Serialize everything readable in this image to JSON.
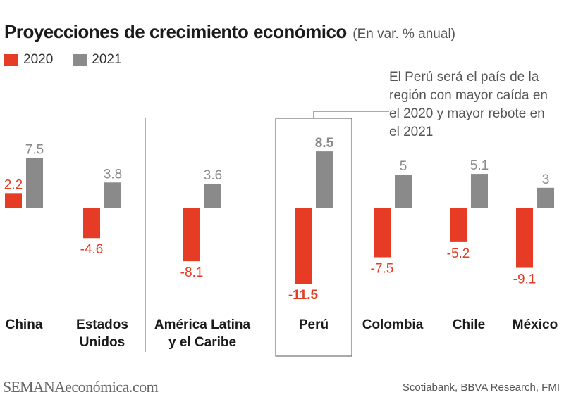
{
  "title": "Proyecciones de crecimiento económico",
  "subtitle": "(En var. % anual)",
  "legend": {
    "a": {
      "label": "2020",
      "color": "#e63b24"
    },
    "b": {
      "label": "2021",
      "color": "#8a8a8a"
    }
  },
  "annotation": "El Perú será el país de la región con mayor caída en el 2020 y mayor rebote en el 2021",
  "footer": {
    "brand_part1": "SEMANA",
    "brand_part2": "económica.com",
    "source": "Scotiabank, BBVA Research, FMI"
  },
  "chart_data": {
    "type": "bar",
    "categories": [
      [
        "China"
      ],
      [
        "Estados",
        "Unidos"
      ],
      [
        "América Latina",
        "y el Caribe"
      ],
      [
        "Perú"
      ],
      [
        "Colombia"
      ],
      [
        "Chile"
      ],
      [
        "México"
      ]
    ],
    "series": [
      {
        "name": "2020",
        "color": "#e63b24",
        "values": [
          2.2,
          -4.6,
          -8.1,
          -11.5,
          -7.5,
          -5.2,
          -9.1
        ],
        "labels": [
          "2.2",
          "-4.6",
          "-8.1",
          "-11.5",
          "-7.5",
          "-5.2",
          "-9.1"
        ]
      },
      {
        "name": "2021",
        "color": "#8a8a8a",
        "values": [
          7.5,
          3.8,
          3.6,
          8.5,
          5,
          5.1,
          3
        ],
        "labels": [
          "7.5",
          "3.8",
          "3.6",
          "8.5",
          "5",
          "5.1",
          "3"
        ]
      }
    ],
    "highlight_category": "Perú",
    "separator_after": "Estados Unidos",
    "ylim": [
      -11.5,
      8.5
    ]
  }
}
